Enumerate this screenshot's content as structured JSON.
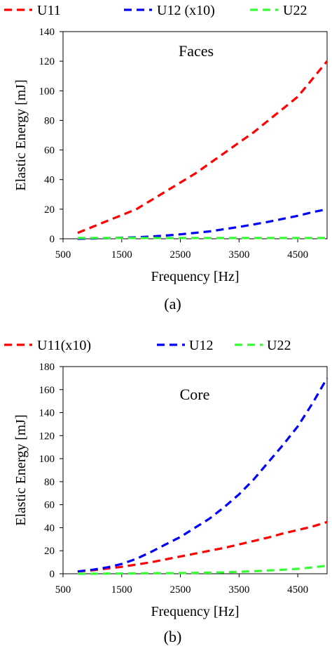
{
  "chart_data": [
    {
      "type": "line",
      "caption": "(a)",
      "annotation": "Faces",
      "xlabel": "Frequency [Hz]",
      "ylabel": "Elastic Energy [mJ]",
      "xlim": [
        500,
        5000
      ],
      "ylim": [
        0,
        140
      ],
      "xticks": [
        500,
        1500,
        2500,
        3500,
        4500
      ],
      "yticks": [
        0,
        20,
        40,
        60,
        80,
        100,
        120,
        140
      ],
      "legend_position": "top",
      "grid": false,
      "x": [
        750,
        1000,
        1250,
        1500,
        1750,
        2000,
        2250,
        2500,
        2750,
        3000,
        3250,
        3500,
        3750,
        4000,
        4250,
        4500,
        4750,
        5000
      ],
      "series": [
        {
          "name": "U11",
          "color": "#ff0000",
          "values": [
            4,
            8,
            12,
            16,
            20,
            26,
            32,
            38,
            44,
            51,
            58,
            65,
            72,
            80,
            88,
            96,
            108,
            120
          ]
        },
        {
          "name": "U12 (x10)",
          "color": "#0000ff",
          "values": [
            0,
            0.2,
            0.4,
            0.7,
            1,
            1.5,
            2.2,
            3,
            4,
            5,
            6.5,
            8,
            9.7,
            11.5,
            13.5,
            15.5,
            18,
            20
          ]
        },
        {
          "name": "U22",
          "color": "#33ff33",
          "values": [
            0.5,
            0.5,
            0.5,
            0.5,
            0.5,
            0.5,
            0.5,
            0.5,
            0.5,
            0.5,
            0.5,
            0.5,
            0.5,
            0.5,
            0.5,
            0.5,
            0.5,
            0.5
          ]
        }
      ]
    },
    {
      "type": "line",
      "caption": "(b)",
      "annotation": "Core",
      "xlabel": "Frequency [Hz]",
      "ylabel": "Elastic Energy [mJ]",
      "xlim": [
        500,
        5000
      ],
      "ylim": [
        0,
        180
      ],
      "xticks": [
        500,
        1500,
        2500,
        3500,
        4500
      ],
      "yticks": [
        0,
        20,
        40,
        60,
        80,
        100,
        120,
        140,
        160,
        180
      ],
      "legend_position": "top",
      "grid": false,
      "x": [
        750,
        1000,
        1250,
        1500,
        1750,
        2000,
        2250,
        2500,
        2750,
        3000,
        3250,
        3500,
        3750,
        4000,
        4250,
        4500,
        4750,
        5000
      ],
      "series": [
        {
          "name": "U11(x10)",
          "color": "#ff0000",
          "values": [
            2,
            3,
            4.5,
            6,
            8,
            10,
            12.5,
            15,
            17.5,
            20,
            22.5,
            25.5,
            28.5,
            31.5,
            35,
            38,
            41,
            45
          ]
        },
        {
          "name": "U12",
          "color": "#0000ff",
          "values": [
            2,
            3.5,
            5.5,
            8.5,
            13,
            19,
            25.5,
            32,
            40,
            48,
            58,
            69,
            82,
            97,
            112,
            128,
            148,
            170
          ]
        },
        {
          "name": "U22",
          "color": "#33ff33",
          "values": [
            0,
            0,
            0.1,
            0.2,
            0.3,
            0.4,
            0.5,
            0.6,
            0.8,
            1,
            1.3,
            1.7,
            2.2,
            2.8,
            3.5,
            4.3,
            5.5,
            7
          ]
        }
      ]
    }
  ]
}
